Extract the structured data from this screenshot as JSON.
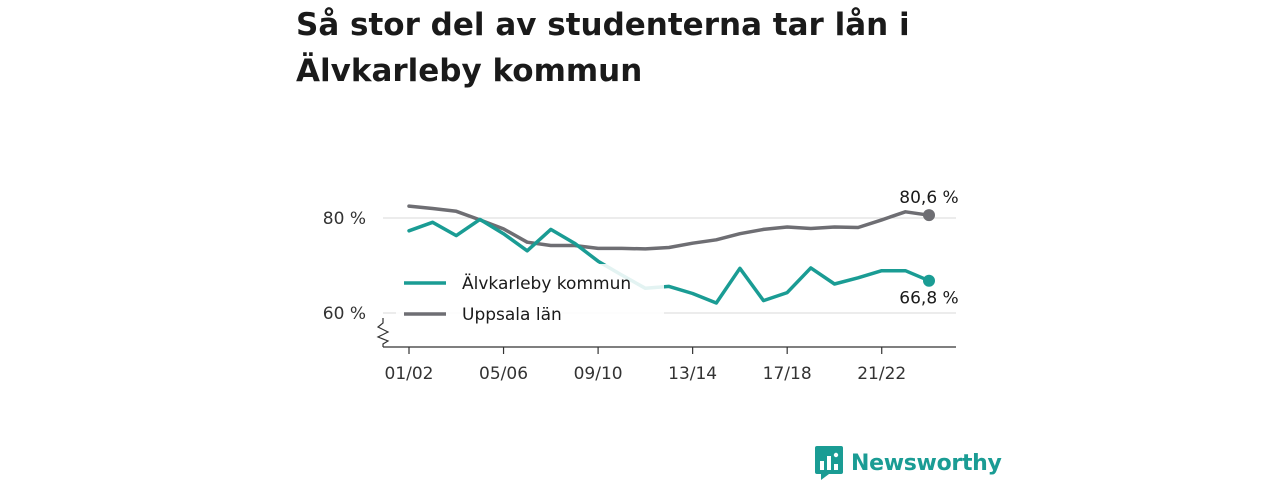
{
  "title": "Så stor del av studenterna tar lån i Älvkarleby kommun",
  "brand": {
    "name": "Newsworthy",
    "color": "#1a9c94",
    "icon": "bar-chart-logo-icon"
  },
  "chart_data": {
    "type": "line",
    "x": [
      "01/02",
      "02/03",
      "03/04",
      "04/05",
      "05/06",
      "06/07",
      "07/08",
      "08/09",
      "09/10",
      "10/11",
      "11/12",
      "12/13",
      "13/14",
      "14/15",
      "15/16",
      "16/17",
      "17/18",
      "18/19",
      "19/20",
      "20/21",
      "21/22",
      "22/23",
      "23/24"
    ],
    "xticks": [
      "01/02",
      "05/06",
      "09/10",
      "13/14",
      "17/18",
      "21/22"
    ],
    "yticks": [
      60,
      80
    ],
    "ytick_labels": [
      "60 %",
      "80 %"
    ],
    "ylim": [
      53,
      90
    ],
    "y_axis_break": true,
    "grid": "horizontal",
    "legend_position": "inside-bottom-left",
    "series": [
      {
        "name": "Älvkarleby kommun",
        "color": "#1a9c94",
        "values": [
          77.3,
          79.1,
          76.3,
          79.7,
          76.7,
          73.1,
          77.6,
          74.7,
          70.9,
          68.0,
          65.2,
          65.6,
          64.1,
          62.1,
          69.4,
          62.6,
          64.3,
          69.5,
          66.1,
          67.4,
          68.9,
          68.9,
          66.8
        ],
        "end_label": "66,8 %"
      },
      {
        "name": "Uppsala län",
        "color": "#6e6e73",
        "values": [
          82.5,
          82.0,
          81.4,
          79.6,
          77.7,
          74.9,
          74.2,
          74.2,
          73.6,
          73.6,
          73.5,
          73.8,
          74.7,
          75.4,
          76.7,
          77.6,
          78.1,
          77.8,
          78.1,
          78.0,
          79.6,
          81.3,
          80.6
        ],
        "end_label": "80,6 %"
      }
    ]
  }
}
